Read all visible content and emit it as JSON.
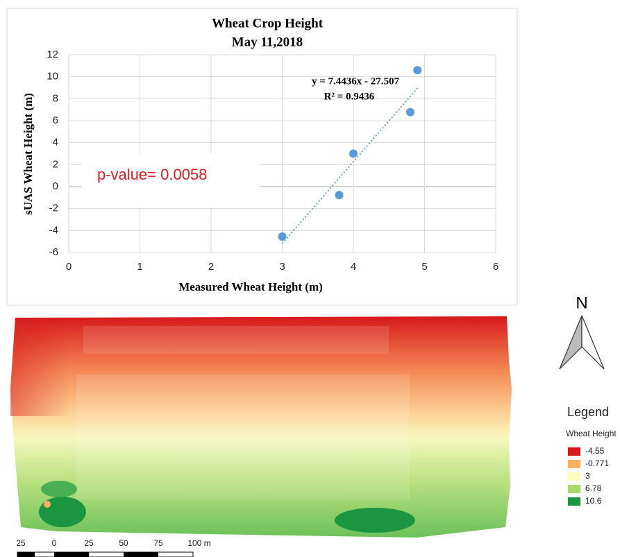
{
  "chart_data": {
    "type": "scatter",
    "title": "Wheat Crop Height",
    "subtitle": "May 11,2018",
    "xlabel": "Measured Wheat Height (m)",
    "ylabel": "sUAS Wheat Height (m)",
    "x": [
      3,
      3.8,
      4,
      4.8,
      4.9
    ],
    "values": [
      -4.55,
      -0.771,
      3,
      6.78,
      10.6
    ],
    "color": "#5b9bd5",
    "xlim": [
      0,
      6
    ],
    "xticks": [
      0,
      1,
      2,
      3,
      4,
      5,
      6
    ],
    "ylim": [
      -6,
      12
    ],
    "yticks": [
      -6,
      -4,
      -2,
      0,
      2,
      4,
      6,
      8,
      10,
      12
    ],
    "grid": true,
    "trendline": {
      "slope": 7.4436,
      "intercept": -27.507,
      "label": "y = 7.4436x - 27.507",
      "r2_label": "R² = 0.9436"
    },
    "annotation": "p-value= 0.0058"
  },
  "map": {
    "north": "N",
    "legend_title": "Legend",
    "legend_subtitle": "Wheat Height",
    "legend": [
      {
        "label": "-4.55",
        "color": "#d7191c"
      },
      {
        "label": "-0.771",
        "color": "#fdae61"
      },
      {
        "label": "3",
        "color": "#ffffbf"
      },
      {
        "label": "6.78",
        "color": "#a6d96a"
      },
      {
        "label": "10.6",
        "color": "#1a9641"
      }
    ],
    "scale_labels": [
      "25",
      "0",
      "25",
      "50",
      "75",
      "100 m"
    ]
  }
}
